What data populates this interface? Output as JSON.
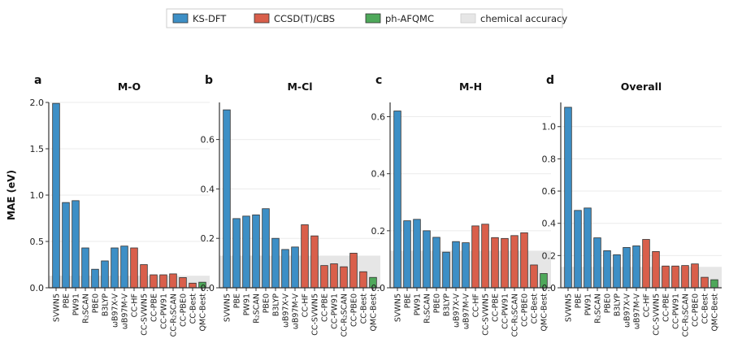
{
  "legend": {
    "items": [
      {
        "label": "KS-DFT",
        "color": "#3d8fc6"
      },
      {
        "label": "CCSD(T)/CBS",
        "color": "#d95f4b"
      },
      {
        "label": "ph-AFQMC",
        "color": "#4ea85a"
      },
      {
        "label": "chemical accuracy",
        "color": "#e6e6e6"
      }
    ]
  },
  "chart_data": [
    {
      "type": "bar",
      "panel": "a",
      "title": "M-O",
      "ylabel": "MAE (eV)",
      "xlabel": "",
      "ylim": [
        0,
        2.0
      ],
      "yticks": [
        0.0,
        0.5,
        1.0,
        1.5,
        2.0
      ],
      "grid": true,
      "categories": [
        "SVWN5",
        "PBE",
        "PW91",
        "R₂SCAN",
        "PBE0",
        "B3LYP",
        "ωB97X-V",
        "ωB97M-V",
        "CC-HF",
        "CC-SVWN5",
        "CC-PBE",
        "CC-PW91",
        "CC-R₂SCAN",
        "CC-PBE0",
        "CC-Best",
        "QMC-Best"
      ],
      "groups": [
        "KS-DFT",
        "KS-DFT",
        "KS-DFT",
        "KS-DFT",
        "KS-DFT",
        "KS-DFT",
        "KS-DFT",
        "KS-DFT",
        "CCSD(T)/CBS",
        "CCSD(T)/CBS",
        "CCSD(T)/CBS",
        "CCSD(T)/CBS",
        "CCSD(T)/CBS",
        "CCSD(T)/CBS",
        "CCSD(T)/CBS",
        "ph-AFQMC"
      ],
      "values": [
        1.99,
        0.92,
        0.94,
        0.43,
        0.2,
        0.29,
        0.43,
        0.45,
        0.43,
        0.25,
        0.14,
        0.14,
        0.15,
        0.11,
        0.05,
        0.06
      ],
      "chemical_accuracy": 0.13
    },
    {
      "type": "bar",
      "panel": "b",
      "title": "M-Cl",
      "xlabel": "",
      "ylim": [
        0,
        0.75
      ],
      "yticks": [
        0.0,
        0.2,
        0.4,
        0.6
      ],
      "grid": true,
      "categories": [
        "SVWN5",
        "PBE",
        "PW91",
        "R₂SCAN",
        "PBE0",
        "B3LYP",
        "ωB97X-V",
        "ωB97M-V",
        "CC-HF",
        "CC-SVWN5",
        "CC-PBE",
        "CC-PW91",
        "CC-R₂SCAN",
        "CC-PBE0",
        "CC-Best",
        "QMC-Best"
      ],
      "groups": [
        "KS-DFT",
        "KS-DFT",
        "KS-DFT",
        "KS-DFT",
        "KS-DFT",
        "KS-DFT",
        "KS-DFT",
        "KS-DFT",
        "CCSD(T)/CBS",
        "CCSD(T)/CBS",
        "CCSD(T)/CBS",
        "CCSD(T)/CBS",
        "CCSD(T)/CBS",
        "CCSD(T)/CBS",
        "CCSD(T)/CBS",
        "ph-AFQMC"
      ],
      "values": [
        0.72,
        0.28,
        0.29,
        0.295,
        0.32,
        0.2,
        0.155,
        0.165,
        0.255,
        0.21,
        0.09,
        0.097,
        0.085,
        0.14,
        0.065,
        0.042
      ],
      "chemical_accuracy": 0.13
    },
    {
      "type": "bar",
      "panel": "c",
      "title": "M-H",
      "xlabel": "",
      "ylim": [
        0,
        0.65
      ],
      "yticks": [
        0.0,
        0.2,
        0.4,
        0.6
      ],
      "grid": true,
      "categories": [
        "SVWN5",
        "PBE",
        "PW91",
        "R₂SCAN",
        "PBE0",
        "B3LYP",
        "ωB97X-V",
        "ωB97M-V",
        "CC-HF",
        "CC-SVWN5",
        "CC-PBE",
        "CC-PW91",
        "CC-R₂SCAN",
        "CC-PBE0",
        "CC-Best",
        "QMC-Best"
      ],
      "groups": [
        "KS-DFT",
        "KS-DFT",
        "KS-DFT",
        "KS-DFT",
        "KS-DFT",
        "KS-DFT",
        "KS-DFT",
        "KS-DFT",
        "CCSD(T)/CBS",
        "CCSD(T)/CBS",
        "CCSD(T)/CBS",
        "CCSD(T)/CBS",
        "CCSD(T)/CBS",
        "CCSD(T)/CBS",
        "CCSD(T)/CBS",
        "ph-AFQMC"
      ],
      "values": [
        0.62,
        0.235,
        0.24,
        0.2,
        0.177,
        0.125,
        0.162,
        0.158,
        0.217,
        0.223,
        0.176,
        0.173,
        0.183,
        0.193,
        0.08,
        0.05
      ],
      "chemical_accuracy": 0.13
    },
    {
      "type": "bar",
      "panel": "d",
      "title": "Overall",
      "xlabel": "",
      "ylim": [
        0,
        1.15
      ],
      "yticks": [
        0.0,
        0.2,
        0.4,
        0.6,
        0.8,
        1.0
      ],
      "grid": true,
      "categories": [
        "SVWN5",
        "PBE",
        "PW91",
        "R₂SCAN",
        "PBE0",
        "B3LYP",
        "ωB97X-V",
        "ωB97M-V",
        "CC-HF",
        "CC-SVWN5",
        "CC-PBE",
        "CC-PW91",
        "CC-R₂SCAN",
        "CC-PBE0",
        "CC-Best",
        "QMC-Best"
      ],
      "groups": [
        "KS-DFT",
        "KS-DFT",
        "KS-DFT",
        "KS-DFT",
        "KS-DFT",
        "KS-DFT",
        "KS-DFT",
        "KS-DFT",
        "CCSD(T)/CBS",
        "CCSD(T)/CBS",
        "CCSD(T)/CBS",
        "CCSD(T)/CBS",
        "CCSD(T)/CBS",
        "CCSD(T)/CBS",
        "CCSD(T)/CBS",
        "ph-AFQMC"
      ],
      "values": [
        1.12,
        0.48,
        0.495,
        0.31,
        0.23,
        0.205,
        0.25,
        0.26,
        0.3,
        0.225,
        0.135,
        0.135,
        0.138,
        0.148,
        0.065,
        0.05
      ],
      "chemical_accuracy": 0.13
    }
  ]
}
